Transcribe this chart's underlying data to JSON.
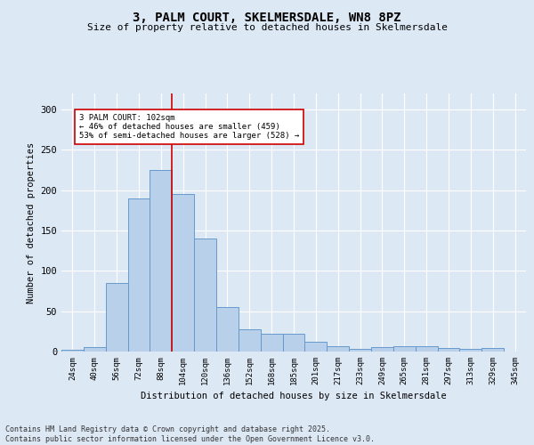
{
  "title1": "3, PALM COURT, SKELMERSDALE, WN8 8PZ",
  "title2": "Size of property relative to detached houses in Skelmersdale",
  "xlabel": "Distribution of detached houses by size in Skelmersdale",
  "ylabel": "Number of detached properties",
  "bin_labels": [
    "24sqm",
    "40sqm",
    "56sqm",
    "72sqm",
    "88sqm",
    "104sqm",
    "120sqm",
    "136sqm",
    "152sqm",
    "168sqm",
    "185sqm",
    "201sqm",
    "217sqm",
    "233sqm",
    "249sqm",
    "265sqm",
    "281sqm",
    "297sqm",
    "313sqm",
    "329sqm",
    "345sqm"
  ],
  "bar_heights": [
    2,
    5,
    85,
    190,
    225,
    195,
    140,
    55,
    28,
    22,
    22,
    12,
    7,
    3,
    5,
    7,
    7,
    4,
    3,
    4,
    0
  ],
  "bar_color": "#b8d0ea",
  "bar_edge_color": "#6699cc",
  "vline_color": "#cc0000",
  "annotation_text": "3 PALM COURT: 102sqm\n← 46% of detached houses are smaller (459)\n53% of semi-detached houses are larger (528) →",
  "annotation_box_color": "#ffffff",
  "annotation_box_edge": "#cc0000",
  "background_color": "#dde8f5",
  "plot_background": "#dde8f5",
  "footer_text": "Contains HM Land Registry data © Crown copyright and database right 2025.\nContains public sector information licensed under the Open Government Licence v3.0.",
  "ylim": [
    0,
    320
  ],
  "yticks": [
    0,
    50,
    100,
    150,
    200,
    250,
    300
  ]
}
